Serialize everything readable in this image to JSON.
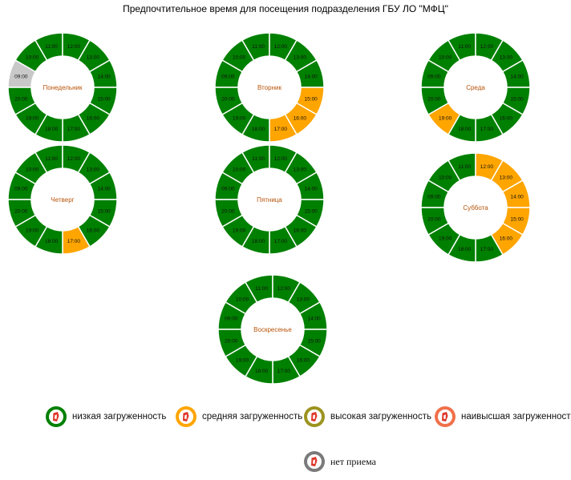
{
  "title": "Предпочтительное время для посещения подразделения ГБУ ЛО \"МФЦ\"",
  "colors": {
    "low": "#008000",
    "medium": "#FFA500",
    "high": "#9C9420",
    "highest": "#F0704A",
    "closed": "#C8C8C8",
    "closed_badge": "#7A7A7A",
    "day_label": "#B8540A"
  },
  "days": [
    {
      "name": "Понедельник",
      "slots": [
        {
          "time": "09:00",
          "level": "closed"
        },
        {
          "time": "10:00",
          "level": "low"
        },
        {
          "time": "11:00",
          "level": "low"
        },
        {
          "time": "12:00",
          "level": "low"
        },
        {
          "time": "13:00",
          "level": "low"
        },
        {
          "time": "14:00",
          "level": "low"
        },
        {
          "time": "15:00",
          "level": "low"
        },
        {
          "time": "16:00",
          "level": "low"
        },
        {
          "time": "17:00",
          "level": "low"
        },
        {
          "time": "18:00",
          "level": "low"
        },
        {
          "time": "19:00",
          "level": "low"
        },
        {
          "time": "20:00",
          "level": "low"
        }
      ]
    },
    {
      "name": "Вторник",
      "slots": [
        {
          "time": "09:00",
          "level": "low"
        },
        {
          "time": "10:00",
          "level": "low"
        },
        {
          "time": "11:00",
          "level": "low"
        },
        {
          "time": "12:00",
          "level": "low"
        },
        {
          "time": "13:00",
          "level": "low"
        },
        {
          "time": "14:00",
          "level": "low"
        },
        {
          "time": "15:00",
          "level": "medium"
        },
        {
          "time": "16:00",
          "level": "medium"
        },
        {
          "time": "17:00",
          "level": "medium"
        },
        {
          "time": "18:00",
          "level": "low"
        },
        {
          "time": "19:00",
          "level": "low"
        },
        {
          "time": "20:00",
          "level": "low"
        }
      ]
    },
    {
      "name": "Среда",
      "slots": [
        {
          "time": "09:00",
          "level": "low"
        },
        {
          "time": "10:00",
          "level": "low"
        },
        {
          "time": "11:00",
          "level": "low"
        },
        {
          "time": "12:00",
          "level": "low"
        },
        {
          "time": "13:00",
          "level": "low"
        },
        {
          "time": "14:00",
          "level": "low"
        },
        {
          "time": "15:00",
          "level": "low"
        },
        {
          "time": "16:00",
          "level": "low"
        },
        {
          "time": "17:00",
          "level": "low"
        },
        {
          "time": "18:00",
          "level": "low"
        },
        {
          "time": "19:00",
          "level": "medium"
        },
        {
          "time": "20:00",
          "level": "low"
        }
      ]
    },
    {
      "name": "Четверг",
      "slots": [
        {
          "time": "09:00",
          "level": "low"
        },
        {
          "time": "10:00",
          "level": "low"
        },
        {
          "time": "11:00",
          "level": "low"
        },
        {
          "time": "12:00",
          "level": "low"
        },
        {
          "time": "13:00",
          "level": "low"
        },
        {
          "time": "14:00",
          "level": "low"
        },
        {
          "time": "15:00",
          "level": "low"
        },
        {
          "time": "16:00",
          "level": "low"
        },
        {
          "time": "17:00",
          "level": "medium"
        },
        {
          "time": "18:00",
          "level": "low"
        },
        {
          "time": "19:00",
          "level": "low"
        },
        {
          "time": "20:00",
          "level": "low"
        }
      ]
    },
    {
      "name": "Пятница",
      "slots": [
        {
          "time": "09:00",
          "level": "low"
        },
        {
          "time": "10:00",
          "level": "low"
        },
        {
          "time": "11:00",
          "level": "low"
        },
        {
          "time": "12:00",
          "level": "low"
        },
        {
          "time": "13:00",
          "level": "low"
        },
        {
          "time": "14:00",
          "level": "low"
        },
        {
          "time": "15:00",
          "level": "low"
        },
        {
          "time": "16:00",
          "level": "low"
        },
        {
          "time": "17:00",
          "level": "low"
        },
        {
          "time": "18:00",
          "level": "low"
        },
        {
          "time": "19:00",
          "level": "low"
        },
        {
          "time": "20:00",
          "level": "low"
        }
      ]
    },
    {
      "name": "Суббота",
      "slots": [
        {
          "time": "09:00",
          "level": "low"
        },
        {
          "time": "10:00",
          "level": "low"
        },
        {
          "time": "11:00",
          "level": "low"
        },
        {
          "time": "12:00",
          "level": "medium"
        },
        {
          "time": "13:00",
          "level": "medium"
        },
        {
          "time": "14:00",
          "level": "medium"
        },
        {
          "time": "15:00",
          "level": "medium"
        },
        {
          "time": "16:00",
          "level": "medium"
        },
        {
          "time": "17:00",
          "level": "low"
        },
        {
          "time": "18:00",
          "level": "low"
        },
        {
          "time": "19:00",
          "level": "low"
        },
        {
          "time": "20:00",
          "level": "low"
        }
      ]
    },
    {
      "name": "Воскресенье",
      "slots": [
        {
          "time": "09:00",
          "level": "low"
        },
        {
          "time": "10:00",
          "level": "low"
        },
        {
          "time": "11:00",
          "level": "low"
        },
        {
          "time": "12:00",
          "level": "low"
        },
        {
          "time": "13:00",
          "level": "low"
        },
        {
          "time": "14:00",
          "level": "low"
        },
        {
          "time": "15:00",
          "level": "low"
        },
        {
          "time": "16:00",
          "level": "low"
        },
        {
          "time": "17:00",
          "level": "low"
        },
        {
          "time": "18:00",
          "level": "low"
        },
        {
          "time": "19:00",
          "level": "low"
        },
        {
          "time": "20:00",
          "level": "low"
        }
      ]
    }
  ],
  "legend": [
    {
      "key": "low",
      "label": "низкая загруженность",
      "icon": "mfc-logo-icon"
    },
    {
      "key": "medium",
      "label": "средняя загруженность",
      "icon": "mfc-logo-icon"
    },
    {
      "key": "high",
      "label": "высокая загруженность",
      "icon": "mfc-logo-icon"
    },
    {
      "key": "highest",
      "label": "наивысшая загруженность",
      "icon": "mfc-logo-icon"
    },
    {
      "key": "closed_badge",
      "label": "нет приема",
      "icon": "mfc-logo-icon"
    }
  ]
}
